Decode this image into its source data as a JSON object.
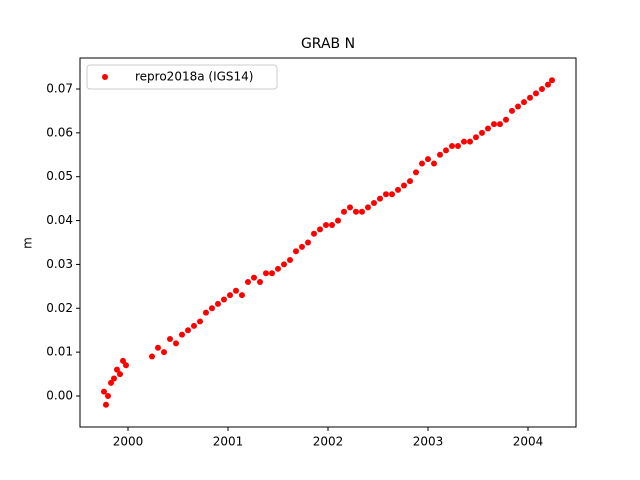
{
  "chart_data": {
    "type": "scatter",
    "title": "GRAB N",
    "y_label": "m",
    "series": [
      {
        "name": "repro2018a (IGS14)",
        "color": "#ff0000",
        "x": [
          1999.76,
          1999.78,
          1999.8,
          1999.83,
          1999.86,
          1999.89,
          1999.92,
          1999.95,
          1999.98,
          2000.24,
          2000.3,
          2000.36,
          2000.42,
          2000.48,
          2000.54,
          2000.6,
          2000.66,
          2000.72,
          2000.78,
          2000.84,
          2000.9,
          2000.96,
          2001.02,
          2001.08,
          2001.14,
          2001.2,
          2001.26,
          2001.32,
          2001.38,
          2001.44,
          2001.5,
          2001.56,
          2001.62,
          2001.68,
          2001.74,
          2001.8,
          2001.86,
          2001.92,
          2001.98,
          2002.04,
          2002.1,
          2002.16,
          2002.22,
          2002.28,
          2002.34,
          2002.4,
          2002.46,
          2002.52,
          2002.58,
          2002.64,
          2002.7,
          2002.76,
          2002.82,
          2002.88,
          2002.94,
          2003.0,
          2003.06,
          2003.12,
          2003.18,
          2003.24,
          2003.3,
          2003.36,
          2003.42,
          2003.48,
          2003.54,
          2003.6,
          2003.66,
          2003.72,
          2003.78,
          2003.84,
          2003.9,
          2003.96,
          2004.02,
          2004.08,
          2004.14,
          2004.2,
          2004.24
        ],
        "values": [
          0.001,
          -0.002,
          0.0,
          0.003,
          0.004,
          0.006,
          0.005,
          0.008,
          0.007,
          0.009,
          0.011,
          0.01,
          0.013,
          0.012,
          0.014,
          0.015,
          0.016,
          0.017,
          0.019,
          0.02,
          0.021,
          0.022,
          0.023,
          0.024,
          0.023,
          0.026,
          0.027,
          0.026,
          0.028,
          0.028,
          0.029,
          0.03,
          0.031,
          0.033,
          0.034,
          0.035,
          0.037,
          0.038,
          0.039,
          0.039,
          0.04,
          0.042,
          0.043,
          0.042,
          0.042,
          0.043,
          0.044,
          0.045,
          0.046,
          0.046,
          0.047,
          0.048,
          0.049,
          0.051,
          0.053,
          0.054,
          0.053,
          0.055,
          0.056,
          0.057,
          0.057,
          0.058,
          0.058,
          0.059,
          0.06,
          0.061,
          0.062,
          0.062,
          0.063,
          0.065,
          0.066,
          0.067,
          0.068,
          0.069,
          0.07,
          0.071,
          0.072
        ]
      }
    ],
    "xlim": [
      1999.52,
      2004.48
    ],
    "xticks": [
      2000,
      2001,
      2002,
      2003,
      2004
    ],
    "ylim": [
      -0.00707,
      0.07707
    ],
    "yticks": [
      {
        "value": 0,
        "label": "0.00"
      },
      0.01,
      0.02,
      0.03,
      0.04,
      0.05,
      0.06,
      0.07
    ],
    "legend": "upper left",
    "grid": false
  }
}
